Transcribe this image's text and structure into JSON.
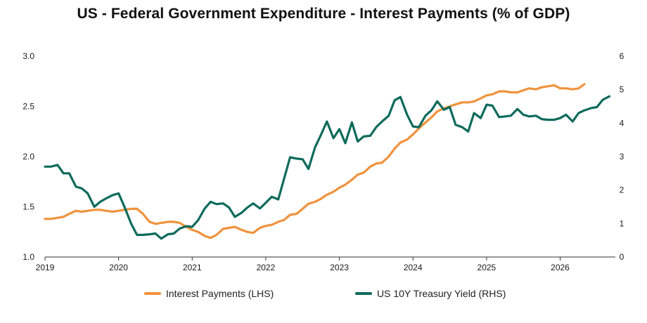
{
  "chart_data": {
    "type": "line",
    "title": "US - Federal Government Expenditure - Interest Payments (% of GDP)",
    "x_axis": {
      "min": 2019,
      "max": 2026.75,
      "ticks": [
        "2019",
        "2020",
        "2021",
        "2022",
        "2023",
        "2024",
        "2025",
        "2026"
      ]
    },
    "y_left": {
      "min": 1.0,
      "max": 3.0,
      "ticks": [
        "1.0",
        "1.5",
        "2.0",
        "2.5",
        "3.0"
      ]
    },
    "y_right": {
      "min": 0,
      "max": 6,
      "ticks": [
        "0",
        "1",
        "2",
        "3",
        "4",
        "5",
        "6"
      ]
    },
    "grid": false,
    "legend_position": "bottom",
    "series": [
      {
        "name": "Interest Payments (LHS)",
        "axis": "left",
        "color": "#F0923C",
        "x": [
          2019.0,
          2019.08,
          2019.17,
          2019.25,
          2019.33,
          2019.42,
          2019.5,
          2019.58,
          2019.67,
          2019.75,
          2019.83,
          2019.92,
          2020.0,
          2020.08,
          2020.17,
          2020.25,
          2020.33,
          2020.42,
          2020.5,
          2020.58,
          2020.67,
          2020.75,
          2020.83,
          2020.92,
          2021.0,
          2021.08,
          2021.17,
          2021.25,
          2021.33,
          2021.42,
          2021.5,
          2021.58,
          2021.67,
          2021.75,
          2021.83,
          2021.92,
          2022.0,
          2022.08,
          2022.17,
          2022.25,
          2022.33,
          2022.42,
          2022.5,
          2022.58,
          2022.67,
          2022.75,
          2022.83,
          2022.92,
          2023.0,
          2023.08,
          2023.17,
          2023.25,
          2023.33,
          2023.42,
          2023.5,
          2023.58,
          2023.67,
          2023.75,
          2023.83,
          2023.92,
          2024.0,
          2024.08,
          2024.17,
          2024.25,
          2024.33,
          2024.42,
          2024.5,
          2024.58,
          2024.67,
          2024.75,
          2024.83,
          2024.92,
          2025.0,
          2025.08,
          2025.17,
          2025.25,
          2025.33,
          2025.42,
          2025.5,
          2025.58,
          2025.67,
          2025.75,
          2025.83,
          2025.92,
          2026.0,
          2026.08,
          2026.17,
          2026.25,
          2026.33
        ],
        "values": [
          1.38,
          1.38,
          1.39,
          1.4,
          1.43,
          1.46,
          1.45,
          1.46,
          1.47,
          1.47,
          1.46,
          1.45,
          1.46,
          1.47,
          1.48,
          1.48,
          1.43,
          1.35,
          1.33,
          1.34,
          1.35,
          1.35,
          1.34,
          1.3,
          1.27,
          1.25,
          1.21,
          1.19,
          1.22,
          1.28,
          1.29,
          1.3,
          1.27,
          1.25,
          1.24,
          1.29,
          1.31,
          1.32,
          1.35,
          1.37,
          1.42,
          1.43,
          1.48,
          1.53,
          1.55,
          1.58,
          1.62,
          1.65,
          1.69,
          1.72,
          1.77,
          1.82,
          1.84,
          1.9,
          1.93,
          1.94,
          2.0,
          2.08,
          2.14,
          2.17,
          2.22,
          2.28,
          2.34,
          2.39,
          2.45,
          2.48,
          2.5,
          2.52,
          2.54,
          2.54,
          2.55,
          2.58,
          2.61,
          2.62,
          2.65,
          2.65,
          2.64,
          2.64,
          2.66,
          2.68,
          2.67,
          2.69,
          2.7,
          2.71,
          2.68,
          2.68,
          2.67,
          2.68,
          2.72
        ]
      },
      {
        "name": "US 10Y Treasury Yield (RHS)",
        "axis": "right",
        "color": "#0E6B5C",
        "x": [
          2019.0,
          2019.08,
          2019.17,
          2019.25,
          2019.33,
          2019.42,
          2019.5,
          2019.58,
          2019.67,
          2019.75,
          2019.83,
          2019.92,
          2020.0,
          2020.08,
          2020.17,
          2020.25,
          2020.33,
          2020.42,
          2020.5,
          2020.58,
          2020.67,
          2020.75,
          2020.83,
          2020.92,
          2021.0,
          2021.08,
          2021.17,
          2021.25,
          2021.33,
          2021.42,
          2021.5,
          2021.58,
          2021.67,
          2021.75,
          2021.83,
          2021.92,
          2022.0,
          2022.08,
          2022.17,
          2022.25,
          2022.33,
          2022.42,
          2022.5,
          2022.58,
          2022.67,
          2022.75,
          2022.83,
          2022.92,
          2023.0,
          2023.08,
          2023.17,
          2023.25,
          2023.33,
          2023.42,
          2023.5,
          2023.58,
          2023.67,
          2023.75,
          2023.83,
          2023.92,
          2024.0,
          2024.08,
          2024.17,
          2024.25,
          2024.33,
          2024.42,
          2024.5,
          2024.58,
          2024.67,
          2024.75,
          2024.83,
          2024.92,
          2025.0,
          2025.08,
          2025.17,
          2025.25,
          2025.33,
          2025.42,
          2025.5,
          2025.58,
          2025.67,
          2025.75,
          2025.83,
          2025.92,
          2026.0,
          2026.08,
          2026.17,
          2026.25,
          2026.33,
          2026.42,
          2026.5,
          2026.58,
          2026.67
        ],
        "values": [
          2.7,
          2.7,
          2.75,
          2.5,
          2.5,
          2.1,
          2.05,
          1.9,
          1.5,
          1.65,
          1.75,
          1.85,
          1.9,
          1.5,
          1.0,
          0.66,
          0.66,
          0.68,
          0.7,
          0.55,
          0.68,
          0.7,
          0.85,
          0.92,
          0.9,
          1.1,
          1.45,
          1.65,
          1.58,
          1.6,
          1.48,
          1.2,
          1.32,
          1.48,
          1.6,
          1.45,
          1.62,
          1.8,
          1.72,
          2.35,
          2.98,
          2.94,
          2.92,
          2.63,
          3.28,
          3.65,
          4.05,
          3.55,
          3.82,
          3.4,
          4.02,
          3.45,
          3.6,
          3.62,
          3.88,
          4.05,
          4.22,
          4.68,
          4.78,
          4.25,
          3.9,
          3.88,
          4.22,
          4.38,
          4.65,
          4.4,
          4.48,
          3.95,
          3.88,
          3.75,
          4.3,
          4.15,
          4.55,
          4.52,
          4.18,
          4.2,
          4.22,
          4.42,
          4.25,
          4.2,
          4.22,
          4.12,
          4.1,
          4.1,
          4.15,
          4.25,
          4.05,
          4.3,
          4.38,
          4.45,
          4.48,
          4.7,
          4.8
        ]
      }
    ]
  }
}
